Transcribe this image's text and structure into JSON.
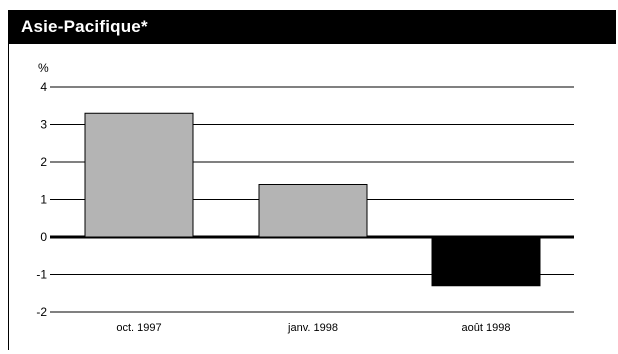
{
  "title": "Asie-Pacifique*",
  "chart_data": {
    "type": "bar",
    "title": "Asie-Pacifique*",
    "xlabel": "",
    "ylabel": "%",
    "categories": [
      "oct. 1997",
      "janv. 1998",
      "août 1998"
    ],
    "values": [
      3.3,
      1.4,
      -1.3
    ],
    "ylim": [
      -2,
      4
    ],
    "yticks": [
      4,
      3,
      2,
      1,
      0,
      -1,
      -2
    ],
    "grid": true,
    "colors": {
      "positive": "#b4b4b4",
      "negative": "#000000",
      "title_bar": "#000000"
    }
  }
}
